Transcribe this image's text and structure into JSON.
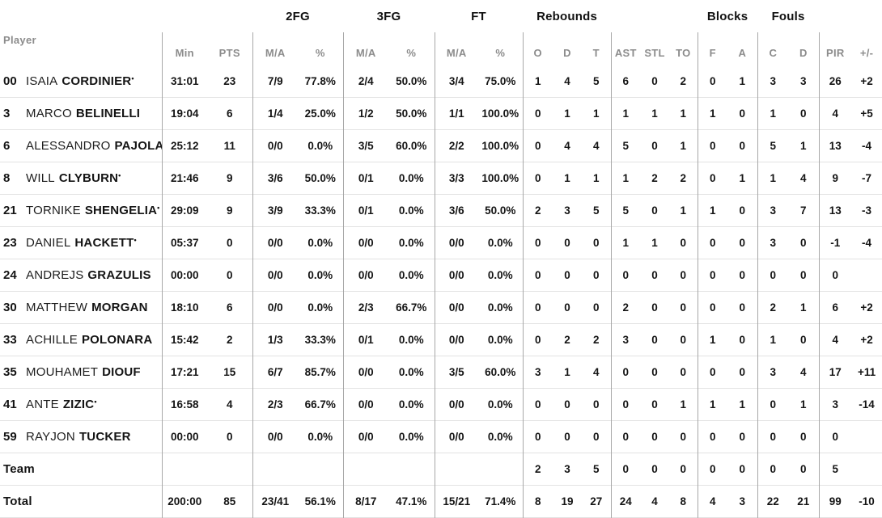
{
  "table": {
    "groups": {
      "fg2": "2FG",
      "fg3": "3FG",
      "ft": "FT",
      "rebounds": "Rebounds",
      "blocks": "Blocks",
      "fouls": "Fouls"
    },
    "headers": {
      "player": "Player",
      "min": "Min",
      "pts": "PTS",
      "ma": "M/A",
      "pct": "%",
      "reb_o": "O",
      "reb_d": "D",
      "reb_t": "T",
      "ast": "AST",
      "stl": "STL",
      "to": "TO",
      "blk_f": "F",
      "blk_a": "A",
      "foul_c": "C",
      "foul_d": "D",
      "pir": "PIR",
      "pm": "+/-"
    },
    "starter_mark": "•",
    "rows": [
      {
        "num": "00",
        "first": "ISAIA",
        "last": "CORDINIER",
        "starter": true,
        "min": "31:01",
        "pts": "23",
        "fg2_ma": "7/9",
        "fg2_pct": "77.8%",
        "fg3_ma": "2/4",
        "fg3_pct": "50.0%",
        "ft_ma": "3/4",
        "ft_pct": "75.0%",
        "reb_o": "1",
        "reb_d": "4",
        "reb_t": "5",
        "ast": "6",
        "stl": "0",
        "to": "2",
        "blk_f": "0",
        "blk_a": "1",
        "foul_c": "3",
        "foul_d": "3",
        "pir": "26",
        "pm": "+2"
      },
      {
        "num": "3",
        "first": "MARCO",
        "last": "BELINELLI",
        "starter": false,
        "min": "19:04",
        "pts": "6",
        "fg2_ma": "1/4",
        "fg2_pct": "25.0%",
        "fg3_ma": "1/2",
        "fg3_pct": "50.0%",
        "ft_ma": "1/1",
        "ft_pct": "100.0%",
        "reb_o": "0",
        "reb_d": "1",
        "reb_t": "1",
        "ast": "1",
        "stl": "1",
        "to": "1",
        "blk_f": "1",
        "blk_a": "0",
        "foul_c": "1",
        "foul_d": "0",
        "pir": "4",
        "pm": "+5"
      },
      {
        "num": "6",
        "first": "ALESSANDRO",
        "last": "PAJOLA",
        "starter": false,
        "min": "25:12",
        "pts": "11",
        "fg2_ma": "0/0",
        "fg2_pct": "0.0%",
        "fg3_ma": "3/5",
        "fg3_pct": "60.0%",
        "ft_ma": "2/2",
        "ft_pct": "100.0%",
        "reb_o": "0",
        "reb_d": "4",
        "reb_t": "4",
        "ast": "5",
        "stl": "0",
        "to": "1",
        "blk_f": "0",
        "blk_a": "0",
        "foul_c": "5",
        "foul_d": "1",
        "pir": "13",
        "pm": "-4"
      },
      {
        "num": "8",
        "first": "WILL",
        "last": "CLYBURN",
        "starter": true,
        "min": "21:46",
        "pts": "9",
        "fg2_ma": "3/6",
        "fg2_pct": "50.0%",
        "fg3_ma": "0/1",
        "fg3_pct": "0.0%",
        "ft_ma": "3/3",
        "ft_pct": "100.0%",
        "reb_o": "0",
        "reb_d": "1",
        "reb_t": "1",
        "ast": "1",
        "stl": "2",
        "to": "2",
        "blk_f": "0",
        "blk_a": "1",
        "foul_c": "1",
        "foul_d": "4",
        "pir": "9",
        "pm": "-7"
      },
      {
        "num": "21",
        "first": "TORNIKE",
        "last": "SHENGELIA",
        "starter": true,
        "min": "29:09",
        "pts": "9",
        "fg2_ma": "3/9",
        "fg2_pct": "33.3%",
        "fg3_ma": "0/1",
        "fg3_pct": "0.0%",
        "ft_ma": "3/6",
        "ft_pct": "50.0%",
        "reb_o": "2",
        "reb_d": "3",
        "reb_t": "5",
        "ast": "5",
        "stl": "0",
        "to": "1",
        "blk_f": "1",
        "blk_a": "0",
        "foul_c": "3",
        "foul_d": "7",
        "pir": "13",
        "pm": "-3"
      },
      {
        "num": "23",
        "first": "DANIEL",
        "last": "HACKETT",
        "starter": true,
        "min": "05:37",
        "pts": "0",
        "fg2_ma": "0/0",
        "fg2_pct": "0.0%",
        "fg3_ma": "0/0",
        "fg3_pct": "0.0%",
        "ft_ma": "0/0",
        "ft_pct": "0.0%",
        "reb_o": "0",
        "reb_d": "0",
        "reb_t": "0",
        "ast": "1",
        "stl": "1",
        "to": "0",
        "blk_f": "0",
        "blk_a": "0",
        "foul_c": "3",
        "foul_d": "0",
        "pir": "-1",
        "pm": "-4"
      },
      {
        "num": "24",
        "first": "ANDREJS",
        "last": "GRAZULIS",
        "starter": false,
        "min": "00:00",
        "pts": "0",
        "fg2_ma": "0/0",
        "fg2_pct": "0.0%",
        "fg3_ma": "0/0",
        "fg3_pct": "0.0%",
        "ft_ma": "0/0",
        "ft_pct": "0.0%",
        "reb_o": "0",
        "reb_d": "0",
        "reb_t": "0",
        "ast": "0",
        "stl": "0",
        "to": "0",
        "blk_f": "0",
        "blk_a": "0",
        "foul_c": "0",
        "foul_d": "0",
        "pir": "0",
        "pm": ""
      },
      {
        "num": "30",
        "first": "MATTHEW",
        "last": "MORGAN",
        "starter": false,
        "min": "18:10",
        "pts": "6",
        "fg2_ma": "0/0",
        "fg2_pct": "0.0%",
        "fg3_ma": "2/3",
        "fg3_pct": "66.7%",
        "ft_ma": "0/0",
        "ft_pct": "0.0%",
        "reb_o": "0",
        "reb_d": "0",
        "reb_t": "0",
        "ast": "2",
        "stl": "0",
        "to": "0",
        "blk_f": "0",
        "blk_a": "0",
        "foul_c": "2",
        "foul_d": "1",
        "pir": "6",
        "pm": "+2"
      },
      {
        "num": "33",
        "first": "ACHILLE",
        "last": "POLONARA",
        "starter": false,
        "min": "15:42",
        "pts": "2",
        "fg2_ma": "1/3",
        "fg2_pct": "33.3%",
        "fg3_ma": "0/1",
        "fg3_pct": "0.0%",
        "ft_ma": "0/0",
        "ft_pct": "0.0%",
        "reb_o": "0",
        "reb_d": "2",
        "reb_t": "2",
        "ast": "3",
        "stl": "0",
        "to": "0",
        "blk_f": "1",
        "blk_a": "0",
        "foul_c": "1",
        "foul_d": "0",
        "pir": "4",
        "pm": "+2"
      },
      {
        "num": "35",
        "first": "MOUHAMET",
        "last": "DIOUF",
        "starter": false,
        "min": "17:21",
        "pts": "15",
        "fg2_ma": "6/7",
        "fg2_pct": "85.7%",
        "fg3_ma": "0/0",
        "fg3_pct": "0.0%",
        "ft_ma": "3/5",
        "ft_pct": "60.0%",
        "reb_o": "3",
        "reb_d": "1",
        "reb_t": "4",
        "ast": "0",
        "stl": "0",
        "to": "0",
        "blk_f": "0",
        "blk_a": "0",
        "foul_c": "3",
        "foul_d": "4",
        "pir": "17",
        "pm": "+11"
      },
      {
        "num": "41",
        "first": "ANTE",
        "last": "ZIZIC",
        "starter": true,
        "min": "16:58",
        "pts": "4",
        "fg2_ma": "2/3",
        "fg2_pct": "66.7%",
        "fg3_ma": "0/0",
        "fg3_pct": "0.0%",
        "ft_ma": "0/0",
        "ft_pct": "0.0%",
        "reb_o": "0",
        "reb_d": "0",
        "reb_t": "0",
        "ast": "0",
        "stl": "0",
        "to": "1",
        "blk_f": "1",
        "blk_a": "1",
        "foul_c": "0",
        "foul_d": "1",
        "pir": "3",
        "pm": "-14"
      },
      {
        "num": "59",
        "first": "RAYJON",
        "last": "TUCKER",
        "starter": false,
        "min": "00:00",
        "pts": "0",
        "fg2_ma": "0/0",
        "fg2_pct": "0.0%",
        "fg3_ma": "0/0",
        "fg3_pct": "0.0%",
        "ft_ma": "0/0",
        "ft_pct": "0.0%",
        "reb_o": "0",
        "reb_d": "0",
        "reb_t": "0",
        "ast": "0",
        "stl": "0",
        "to": "0",
        "blk_f": "0",
        "blk_a": "0",
        "foul_c": "0",
        "foul_d": "0",
        "pir": "0",
        "pm": ""
      },
      {
        "label": "Team",
        "min": "",
        "pts": "",
        "fg2_ma": "",
        "fg2_pct": "",
        "fg3_ma": "",
        "fg3_pct": "",
        "ft_ma": "",
        "ft_pct": "",
        "reb_o": "2",
        "reb_d": "3",
        "reb_t": "5",
        "ast": "0",
        "stl": "0",
        "to": "0",
        "blk_f": "0",
        "blk_a": "0",
        "foul_c": "0",
        "foul_d": "0",
        "pir": "5",
        "pm": ""
      },
      {
        "label": "Total",
        "min": "200:00",
        "pts": "85",
        "fg2_ma": "23/41",
        "fg2_pct": "56.1%",
        "fg3_ma": "8/17",
        "fg3_pct": "47.1%",
        "ft_ma": "15/21",
        "ft_pct": "71.4%",
        "reb_o": "8",
        "reb_d": "19",
        "reb_t": "27",
        "ast": "24",
        "stl": "4",
        "to": "8",
        "blk_f": "4",
        "blk_a": "3",
        "foul_c": "22",
        "foul_d": "21",
        "pir": "99",
        "pm": "-10"
      }
    ]
  }
}
